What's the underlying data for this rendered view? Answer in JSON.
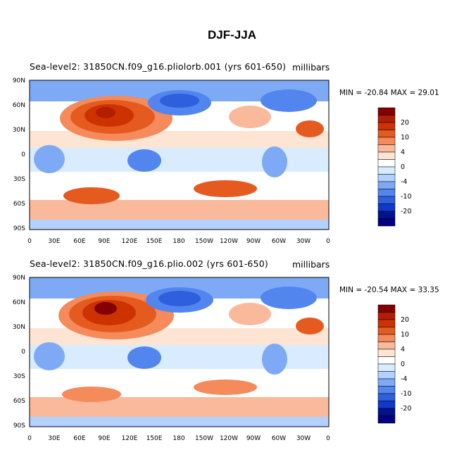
{
  "title": "DJF-JJA",
  "panels": [
    {
      "case_label": "Sea-level2: 31850CN.f09_g16.pliolorb.001  (yrs  601-650)",
      "units": "millibars",
      "stats": "MIN = -20.84  MAX =   29.01"
    },
    {
      "case_label": "Sea-level2: 31850CN.f09_g16.plio.002  (yrs  601-650)",
      "units": "millibars",
      "stats": "MIN = -20.54  MAX =   33.35"
    }
  ],
  "lat_ticks": [
    "90N",
    "60N",
    "30N",
    "0",
    "30S",
    "60S",
    "90S"
  ],
  "lon_ticks": [
    "0",
    "30E",
    "60E",
    "90E",
    "120E",
    "150E",
    "180",
    "150W",
    "120W",
    "90W",
    "60W",
    "30W",
    "0"
  ],
  "colorbar": {
    "labels": [
      "20",
      "10",
      "4",
      "0",
      "-4",
      "-10",
      "-20"
    ],
    "colors": [
      "#840000",
      "#b31d00",
      "#cc3300",
      "#e55a1f",
      "#f58a5a",
      "#fab99a",
      "#fde4d3",
      "#ffffff",
      "#d9ecff",
      "#b3d1ff",
      "#7eaaf5",
      "#5285ee",
      "#2e5fdc",
      "#1138cc",
      "#00138c",
      "#000080"
    ]
  }
}
